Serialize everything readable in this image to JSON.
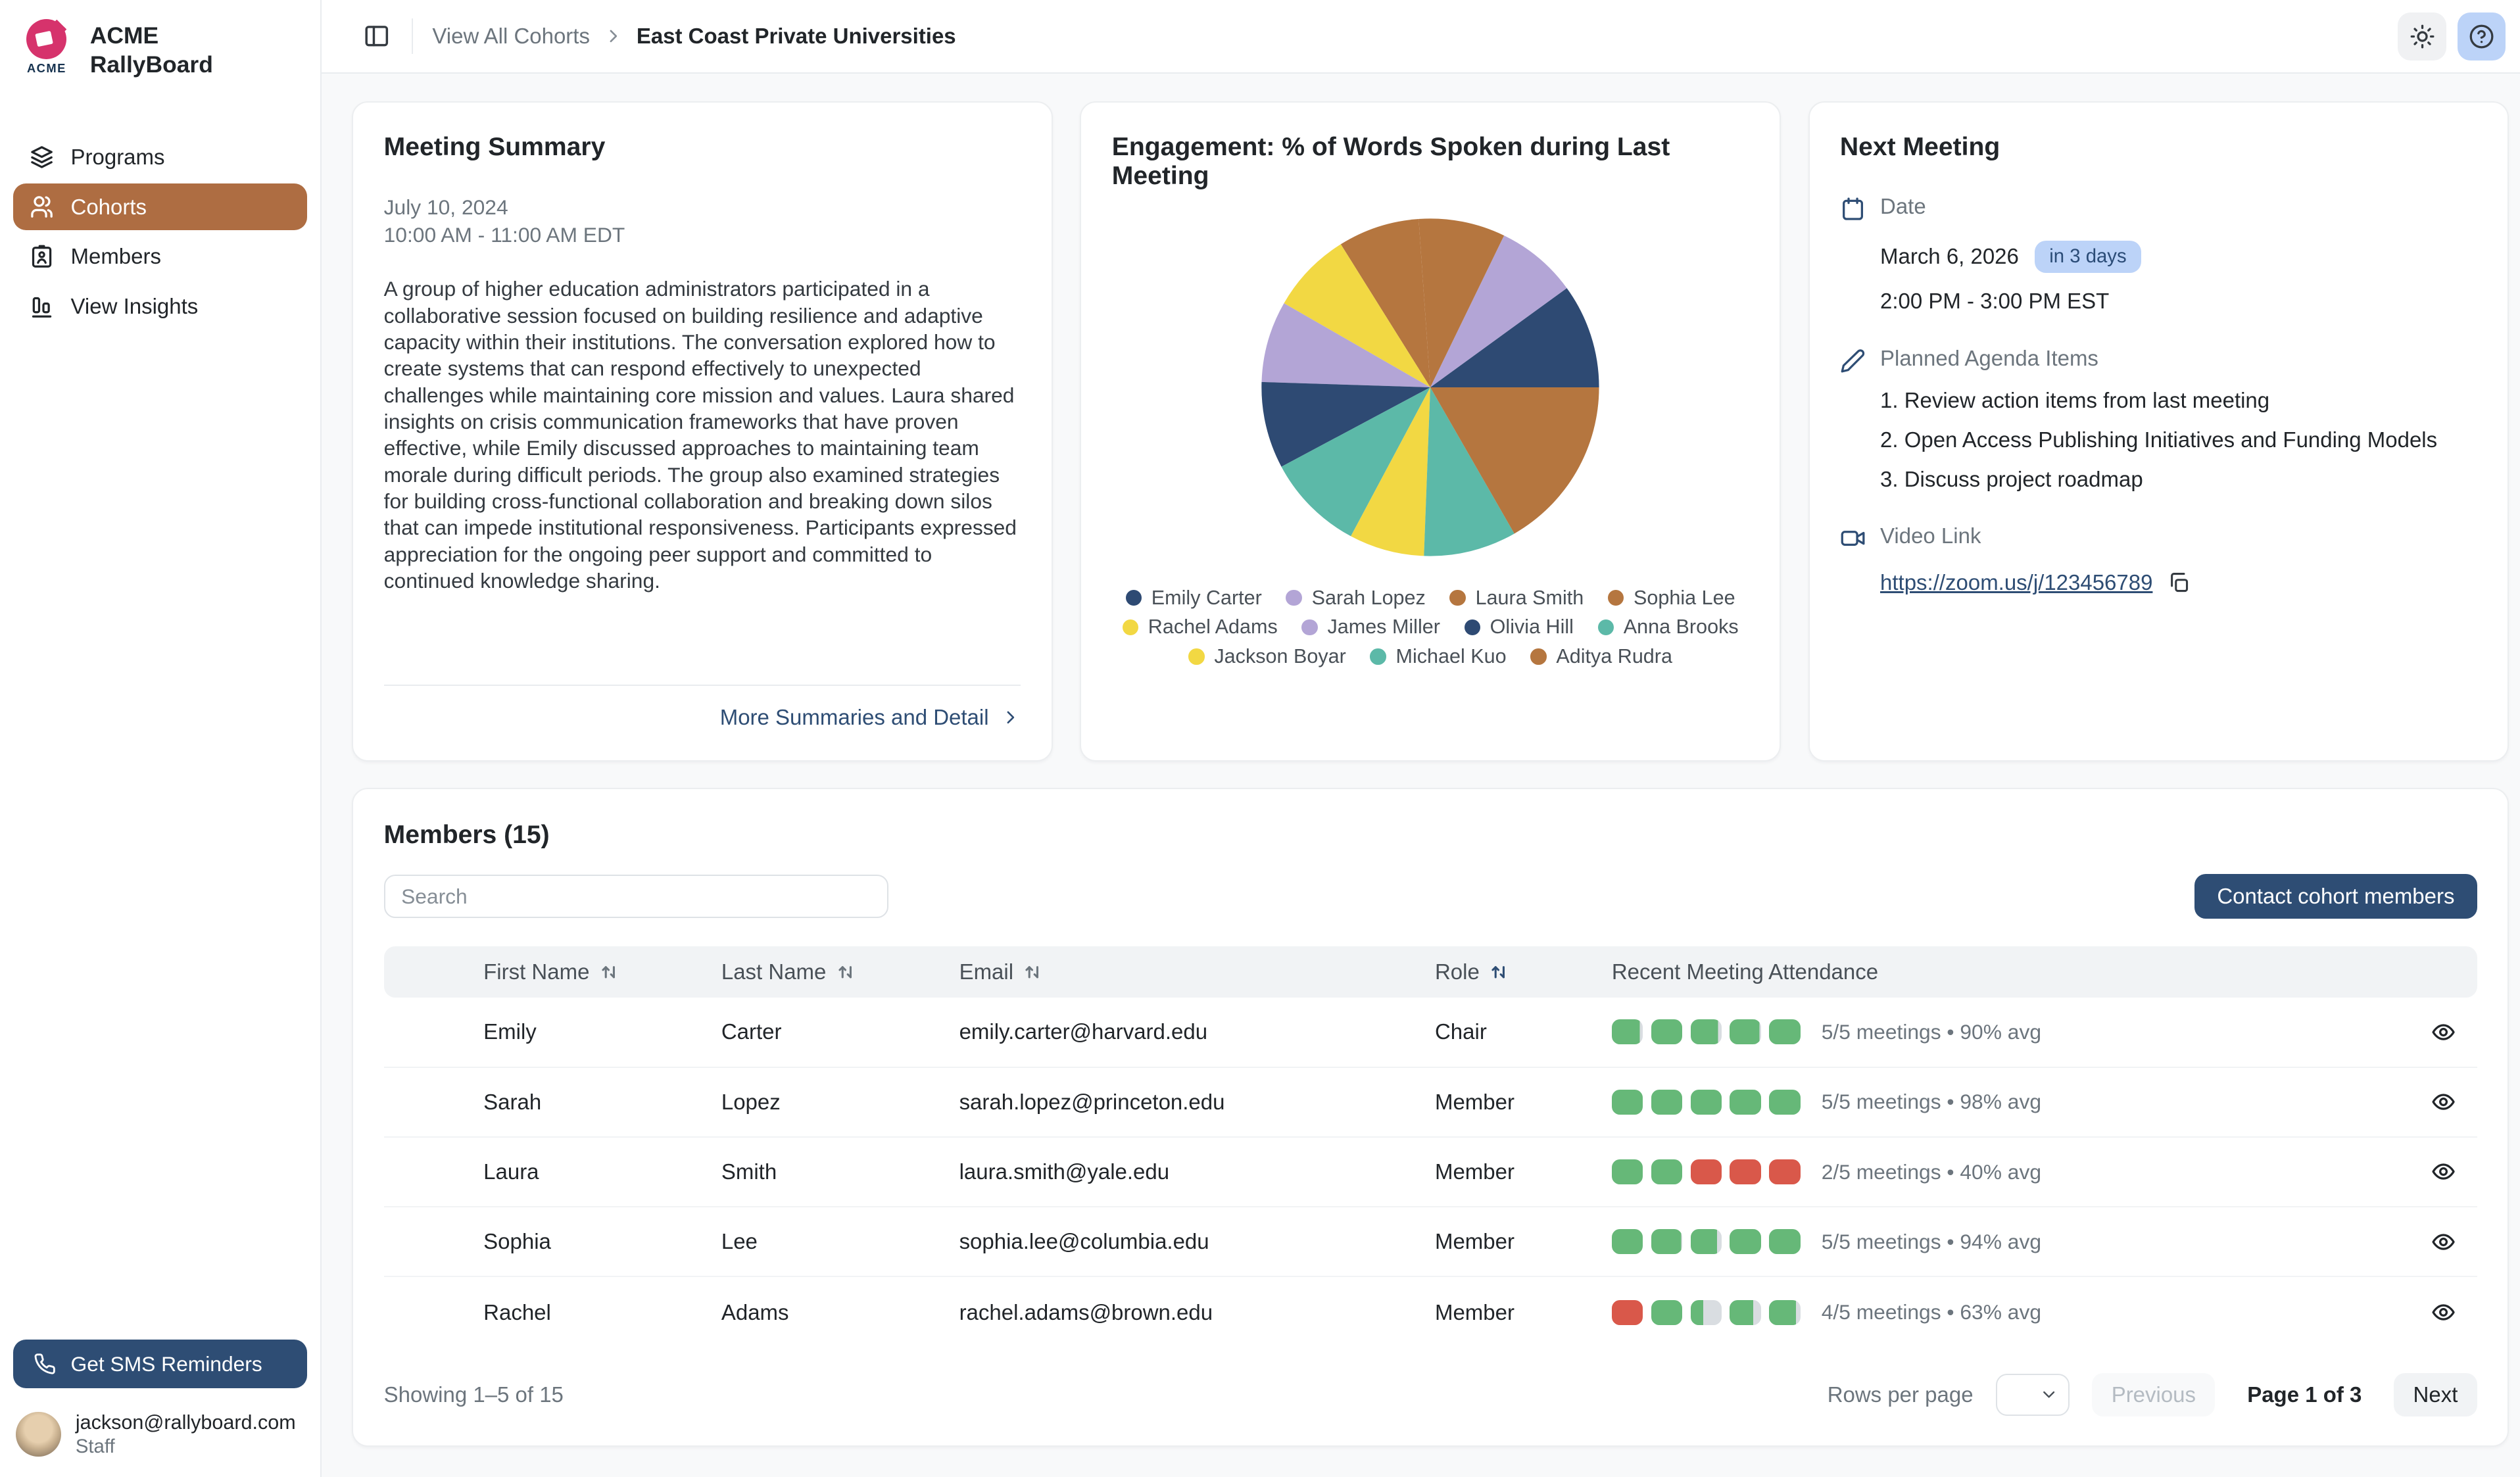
{
  "colors": {
    "navy": "#2e4d74",
    "brown_active": "#ae6d42",
    "badge_blue": "#bcd3f8",
    "attendance_green": "#66b878",
    "attendance_red": "#d9584a",
    "attendance_gray": "#d9dde1"
  },
  "sidebar": {
    "brand_badge_text": "ACME",
    "brand_line1": "ACME",
    "brand_line2": "RallyBoard",
    "nav": [
      {
        "label": "Programs",
        "icon": "layers-icon",
        "active": false
      },
      {
        "label": "Cohorts",
        "icon": "users-icon",
        "active": true
      },
      {
        "label": "Members",
        "icon": "id-badge-icon",
        "active": false
      },
      {
        "label": "View Insights",
        "icon": "bar-chart-icon",
        "active": false
      }
    ],
    "sms_button_label": "Get SMS Reminders",
    "user_email": "jackson@rallyboard.com",
    "user_role": "Staff"
  },
  "header": {
    "breadcrumb_parent": "View All Cohorts",
    "breadcrumb_current": "East Coast Private Universities"
  },
  "meeting_summary": {
    "title": "Meeting Summary",
    "date": "July 10, 2024",
    "time_range": "10:00 AM - 11:00 AM EDT",
    "body": "A group of higher education administrators participated in a collaborative session focused on building resilience and adaptive capacity within their institutions. The conversation explored how to create systems that can respond effectively to unexpected challenges while maintaining core mission and values. Laura shared insights on crisis communication frameworks that have proven effective, while Emily discussed approaches to maintaining team morale during difficult periods. The group also examined strategies for building cross-functional collaboration and breaking down silos that can impede institutional responsiveness. Participants expressed appreciation for the ongoing peer support and committed to continued knowledge sharing.",
    "more_link": "More Summaries and Detail"
  },
  "chart_data": {
    "type": "pie",
    "title": "Engagement: % of Words Spoken during Last Meeting",
    "legend_position": "bottom",
    "start_angle_deg": 0,
    "direction": "counterclockwise",
    "unit": "percent of words spoken",
    "series": [
      {
        "name": "Emily Carter",
        "value": 10.0,
        "color": "#2e4a73"
      },
      {
        "name": "Sarah Lopez",
        "value": 7.8,
        "color": "#b3a5d6"
      },
      {
        "name": "Laura Smith",
        "value": 8.3,
        "color": "#b5763f"
      },
      {
        "name": "Sophia Lee",
        "value": 7.8,
        "color": "#b5763f"
      },
      {
        "name": "Rachel Adams",
        "value": 7.8,
        "color": "#f2d843"
      },
      {
        "name": "James Miller",
        "value": 7.8,
        "color": "#b3a5d6"
      },
      {
        "name": "Olivia Hill",
        "value": 8.3,
        "color": "#2e4a73"
      },
      {
        "name": "Anna Brooks",
        "value": 9.4,
        "color": "#5cb9a8"
      },
      {
        "name": "Jackson Boyar",
        "value": 7.2,
        "color": "#f2d843"
      },
      {
        "name": "Michael Kuo",
        "value": 8.9,
        "color": "#5cb9a8"
      },
      {
        "name": "Aditya Rudra",
        "value": 16.7,
        "color": "#b5763f"
      }
    ]
  },
  "next_meeting": {
    "title": "Next Meeting",
    "date_label": "Date",
    "date": "March 6, 2026",
    "date_badge": "in 3 days",
    "time_range": "2:00 PM - 3:00 PM EST",
    "agenda_label": "Planned Agenda Items",
    "agenda_items": [
      "1. Review action items from last meeting",
      "2. Open Access Publishing Initiatives and Funding Models",
      "3. Discuss project roadmap"
    ],
    "video_label": "Video Link",
    "video_link": "https://zoom.us/j/123456789"
  },
  "members": {
    "title": "Members (15)",
    "search_placeholder": "Search",
    "contact_button_label": "Contact cohort members",
    "columns": [
      {
        "label": "First Name",
        "sortable": true,
        "active_sort": false
      },
      {
        "label": "Last Name",
        "sortable": true,
        "active_sort": false
      },
      {
        "label": "Email",
        "sortable": true,
        "active_sort": false
      },
      {
        "label": "Role",
        "sortable": true,
        "active_sort": true
      },
      {
        "label": "Recent Meeting Attendance",
        "sortable": false,
        "active_sort": false
      }
    ],
    "rows": [
      {
        "first_name": "Emily",
        "last_name": "Carter",
        "email": "emily.carter@harvard.edu",
        "role": "Chair",
        "attendance_text": "5/5 meetings • 90% avg",
        "attendance_bars": [
          {
            "color": "green",
            "fill": 0.9
          },
          {
            "color": "green",
            "fill": 1
          },
          {
            "color": "green",
            "fill": 0.88
          },
          {
            "color": "green",
            "fill": 0.95
          },
          {
            "color": "green",
            "fill": 1
          }
        ]
      },
      {
        "first_name": "Sarah",
        "last_name": "Lopez",
        "email": "sarah.lopez@princeton.edu",
        "role": "Member",
        "attendance_text": "5/5 meetings • 98% avg",
        "attendance_bars": [
          {
            "color": "green",
            "fill": 1
          },
          {
            "color": "green",
            "fill": 1
          },
          {
            "color": "green",
            "fill": 1
          },
          {
            "color": "green",
            "fill": 1
          },
          {
            "color": "green",
            "fill": 1
          }
        ]
      },
      {
        "first_name": "Laura",
        "last_name": "Smith",
        "email": "laura.smith@yale.edu",
        "role": "Member",
        "attendance_text": "2/5 meetings • 40% avg",
        "attendance_bars": [
          {
            "color": "green",
            "fill": 1
          },
          {
            "color": "green",
            "fill": 1
          },
          {
            "color": "red",
            "fill": 1
          },
          {
            "color": "red",
            "fill": 1
          },
          {
            "color": "red",
            "fill": 1
          }
        ]
      },
      {
        "first_name": "Sophia",
        "last_name": "Lee",
        "email": "sophia.lee@columbia.edu",
        "role": "Member",
        "attendance_text": "5/5 meetings • 94% avg",
        "attendance_bars": [
          {
            "color": "green",
            "fill": 1
          },
          {
            "color": "green",
            "fill": 0.97
          },
          {
            "color": "green",
            "fill": 0.85
          },
          {
            "color": "green",
            "fill": 1
          },
          {
            "color": "green",
            "fill": 1
          }
        ]
      },
      {
        "first_name": "Rachel",
        "last_name": "Adams",
        "email": "rachel.adams@brown.edu",
        "role": "Member",
        "attendance_text": "4/5 meetings • 63% avg",
        "attendance_bars": [
          {
            "color": "red",
            "fill": 1
          },
          {
            "color": "green",
            "fill": 1
          },
          {
            "color": "green",
            "fill": 0.4
          },
          {
            "color": "green",
            "fill": 0.75
          },
          {
            "color": "green",
            "fill": 0.85
          }
        ]
      }
    ],
    "footer": {
      "showing_text": "Showing 1–5 of 15",
      "rows_per_page_label": "Rows per page",
      "previous_label": "Previous",
      "page_text": "Page 1 of 3",
      "next_label": "Next"
    }
  }
}
